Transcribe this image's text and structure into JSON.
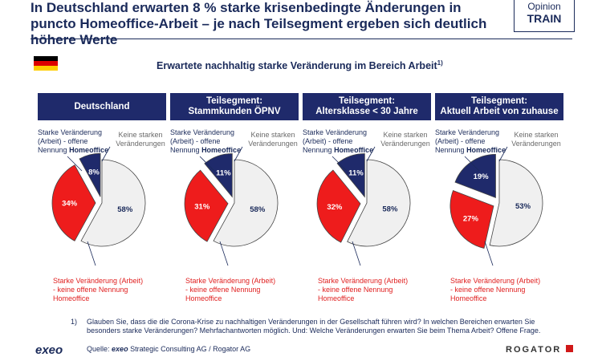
{
  "header": {
    "title": "In Deutschland erwarten 8 % starke krisenbedingte Änderungen in puncto Homeoffice-Arbeit – je nach Teilsegment ergeben sich deutlich höhere Werte",
    "logo_line1": "Opinion",
    "logo_line2": "TRAIN"
  },
  "subtitle": "Erwartete nachhaltig starke Veränderung im Bereich Arbeit",
  "subtitle_sup": "1)",
  "labels": {
    "homeoffice_prefix": "Starke Veränderung (Arbeit) - offene Nennung",
    "homeoffice_word": "Homeoffice",
    "no_change": "Keine starken Veränderungen",
    "other_arbeit": "Starke Veränderung (Arbeit) - keine offene Nennung Homeoffice"
  },
  "colors": {
    "homeoffice": "#1f2a6b",
    "other": "#ee1c1c",
    "no_change": "#f0f0f0",
    "header_bar": "#1f2a6b"
  },
  "chart_data": [
    {
      "type": "pie",
      "title": "Deutschland",
      "series": [
        {
          "name": "Starke Veränderung (Arbeit) - offene Nennung Homeoffice",
          "value": 8,
          "label": "8%"
        },
        {
          "name": "Keine starken Veränderungen",
          "value": 58,
          "label": "58%"
        },
        {
          "name": "Starke Veränderung (Arbeit) - keine offene Nennung Homeoffice",
          "value": 34,
          "label": "34%"
        }
      ]
    },
    {
      "type": "pie",
      "title": "Teilsegment: Stammkunden ÖPNV",
      "series": [
        {
          "name": "Starke Veränderung (Arbeit) - offene Nennung Homeoffice",
          "value": 11,
          "label": "11%"
        },
        {
          "name": "Keine starken Veränderungen",
          "value": 58,
          "label": "58%"
        },
        {
          "name": "Starke Veränderung (Arbeit) - keine offene Nennung Homeoffice",
          "value": 31,
          "label": "31%"
        }
      ]
    },
    {
      "type": "pie",
      "title": "Teilsegment: Altersklasse < 30 Jahre",
      "series": [
        {
          "name": "Starke Veränderung (Arbeit) - offene Nennung Homeoffice",
          "value": 11,
          "label": "11%"
        },
        {
          "name": "Keine starken Veränderungen",
          "value": 58,
          "label": "58%"
        },
        {
          "name": "Starke Veränderung (Arbeit) - keine offene Nennung Homeoffice",
          "value": 32,
          "label": "32%"
        }
      ]
    },
    {
      "type": "pie",
      "title": "Teilsegment: Aktuell Arbeit von zuhause",
      "series": [
        {
          "name": "Starke Veränderung (Arbeit) - offene Nennung Homeoffice",
          "value": 19,
          "label": "19%"
        },
        {
          "name": "Keine starken Veränderungen",
          "value": 53,
          "label": "53%"
        },
        {
          "name": "Starke Veränderung (Arbeit) - keine offene Nennung Homeoffice",
          "value": 27,
          "label": "27%"
        }
      ]
    }
  ],
  "panel_heads": [
    {
      "line1": "Deutschland",
      "line2": ""
    },
    {
      "line1": "Teilsegment:",
      "line2": "Stammkunden ÖPNV"
    },
    {
      "line1": "Teilsegment:",
      "line2": "Altersklasse < 30 Jahre"
    },
    {
      "line1": "Teilsegment:",
      "line2": "Aktuell Arbeit von zuhause"
    }
  ],
  "footnote": {
    "num": "1)",
    "text": "Glauben Sie, dass die die Corona-Krise zu nachhaltigen Veränderungen in der Gesellschaft führen wird? In welchen Bereichen erwarten Sie besonders starke Veränderungen? Mehrfachantworten möglich. Und: Welche Veränderungen erwarten Sie beim Thema Arbeit? Offene Frage."
  },
  "source": {
    "prefix": "Quelle:",
    "brand": "exeo",
    "rest": "Strategic Consulting AG / Rogator AG"
  },
  "logos": {
    "exeo": "exeo",
    "rogator": "ROGATOR"
  },
  "flag_colors": [
    "#000000",
    "#dd0000",
    "#ffce00"
  ]
}
